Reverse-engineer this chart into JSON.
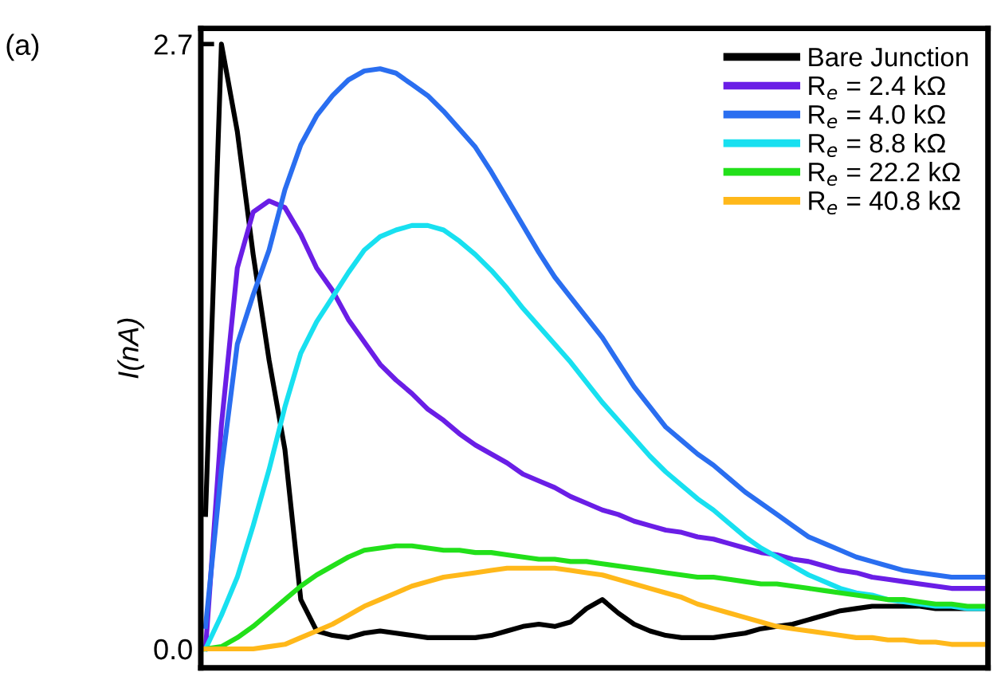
{
  "chart_data": {
    "type": "line",
    "ylabel": "I(nA)",
    "annotations": [
      "(a)"
    ],
    "categories": [
      null,
      null,
      null,
      null,
      null,
      null,
      null,
      null,
      null,
      null,
      null,
      null,
      null,
      null,
      null,
      null,
      null,
      null,
      null,
      null,
      null,
      null,
      null,
      null,
      null,
      null,
      null,
      null,
      null,
      null,
      null,
      null,
      null,
      null,
      null,
      null,
      null,
      null,
      null,
      null,
      null,
      null,
      null,
      null,
      null,
      null,
      null,
      null,
      null,
      null
    ],
    "ylim": [
      -0.085,
      2.77
    ],
    "yticks": [
      {
        "value": 0,
        "label": "0.0"
      },
      {
        "value": 2.7,
        "label": "2.7"
      }
    ],
    "tick_labels": "y",
    "grid": false,
    "legend": "top right",
    "line_style": "solid",
    "marker": "none",
    "series": [
      {
        "name": "Bare Junction",
        "color": "#000000",
        "values": [
          0.6,
          2.7,
          2.31,
          1.76,
          1.29,
          0.89,
          0.22,
          0.08,
          0.06,
          0.05,
          0.07,
          0.08,
          0.07,
          0.06,
          0.05,
          0.05,
          0.05,
          0.05,
          0.06,
          0.08,
          0.1,
          0.11,
          0.1,
          0.12,
          0.18,
          0.22,
          0.16,
          0.11,
          0.08,
          0.06,
          0.05,
          0.05,
          0.05,
          0.06,
          0.07,
          0.09,
          0.1,
          0.11,
          0.13,
          0.15,
          0.17,
          0.18,
          0.19,
          0.19,
          0.19,
          0.19,
          0.18,
          0.18,
          0.18,
          0.18
        ]
      },
      {
        "name": "R$_{e}$ = 2.4 kΩ",
        "color": "#6a1ee6",
        "values": [
          0.0,
          1.0,
          1.7,
          1.95,
          2.0,
          1.97,
          1.85,
          1.7,
          1.6,
          1.47,
          1.37,
          1.27,
          1.2,
          1.14,
          1.07,
          1.02,
          0.96,
          0.91,
          0.87,
          0.83,
          0.78,
          0.75,
          0.72,
          0.68,
          0.65,
          0.62,
          0.6,
          0.57,
          0.55,
          0.53,
          0.52,
          0.5,
          0.49,
          0.47,
          0.45,
          0.43,
          0.42,
          0.4,
          0.39,
          0.37,
          0.35,
          0.34,
          0.32,
          0.31,
          0.3,
          0.29,
          0.28,
          0.27,
          0.27,
          0.27
        ]
      },
      {
        "name": "R$_{e}$ = 4.0 kΩ",
        "color": "#2a6ef0",
        "values": [
          0.1,
          0.8,
          1.36,
          1.58,
          1.78,
          2.05,
          2.25,
          2.38,
          2.47,
          2.54,
          2.58,
          2.59,
          2.57,
          2.52,
          2.47,
          2.4,
          2.32,
          2.24,
          2.13,
          2.01,
          1.89,
          1.77,
          1.66,
          1.57,
          1.48,
          1.39,
          1.28,
          1.17,
          1.08,
          0.99,
          0.93,
          0.87,
          0.82,
          0.76,
          0.7,
          0.65,
          0.6,
          0.55,
          0.5,
          0.47,
          0.44,
          0.41,
          0.39,
          0.37,
          0.35,
          0.34,
          0.33,
          0.32,
          0.32,
          0.32
        ]
      },
      {
        "name": "R$_{e}$ = 8.8 kΩ",
        "color": "#18e0f0",
        "values": [
          0.0,
          0.15,
          0.32,
          0.55,
          0.8,
          1.08,
          1.32,
          1.46,
          1.57,
          1.68,
          1.78,
          1.84,
          1.87,
          1.89,
          1.89,
          1.87,
          1.82,
          1.76,
          1.69,
          1.61,
          1.52,
          1.44,
          1.36,
          1.28,
          1.19,
          1.1,
          1.02,
          0.94,
          0.86,
          0.79,
          0.73,
          0.67,
          0.62,
          0.56,
          0.5,
          0.45,
          0.41,
          0.37,
          0.33,
          0.3,
          0.27,
          0.25,
          0.24,
          0.22,
          0.21,
          0.2,
          0.19,
          0.19,
          0.18,
          0.18
        ]
      },
      {
        "name": "R$_{e}$ = 22.2 kΩ",
        "color": "#22e01a",
        "values": [
          0.0,
          0.01,
          0.05,
          0.1,
          0.16,
          0.22,
          0.28,
          0.33,
          0.37,
          0.41,
          0.44,
          0.45,
          0.46,
          0.46,
          0.45,
          0.44,
          0.44,
          0.43,
          0.43,
          0.42,
          0.41,
          0.4,
          0.4,
          0.39,
          0.39,
          0.38,
          0.37,
          0.36,
          0.35,
          0.34,
          0.33,
          0.32,
          0.32,
          0.31,
          0.3,
          0.29,
          0.29,
          0.28,
          0.27,
          0.26,
          0.25,
          0.24,
          0.23,
          0.22,
          0.22,
          0.21,
          0.2,
          0.2,
          0.19,
          0.19
        ]
      },
      {
        "name": "R$_{e}$ = 40.8 kΩ",
        "color": "#ffb81a",
        "values": [
          0.0,
          0.0,
          0.0,
          0.0,
          0.01,
          0.02,
          0.05,
          0.08,
          0.11,
          0.15,
          0.19,
          0.22,
          0.25,
          0.28,
          0.3,
          0.32,
          0.33,
          0.34,
          0.35,
          0.36,
          0.36,
          0.36,
          0.36,
          0.35,
          0.34,
          0.33,
          0.31,
          0.29,
          0.27,
          0.25,
          0.23,
          0.2,
          0.18,
          0.16,
          0.14,
          0.12,
          0.1,
          0.09,
          0.08,
          0.07,
          0.06,
          0.05,
          0.05,
          0.04,
          0.04,
          0.03,
          0.03,
          0.02,
          0.02,
          0.02
        ]
      }
    ]
  }
}
